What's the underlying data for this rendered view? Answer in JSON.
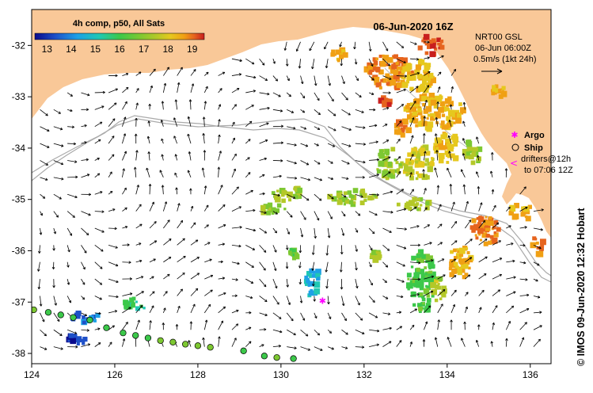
{
  "title": "06-Jun-2020 16Z",
  "colorbar": {
    "title": "4h comp, p50, All Sats",
    "ticks": [
      "13",
      "14",
      "15",
      "16",
      "17",
      "18",
      "19"
    ],
    "range": [
      12.5,
      19.5
    ]
  },
  "current_key": {
    "line1": "NRT00 GSL",
    "line2": "06-Jun 06:00Z",
    "line3": "0.5m/s (1kt 24h)"
  },
  "legend": {
    "argo_label": "Argo",
    "ship_label": "Ship",
    "drifters_line1": "drifters@12h",
    "drifters_line2": "to 07:06 12Z"
  },
  "credit": "© IMOS 09-Jun-2020 12:32 Hobart",
  "axes": {
    "x_ticks": [
      "124",
      "126",
      "128",
      "130",
      "132",
      "134",
      "136"
    ],
    "y_ticks": [
      "-32",
      "-33",
      "-34",
      "-35",
      "-36",
      "-37",
      "-38"
    ],
    "lon_range": [
      124,
      136.5
    ],
    "lat_range": [
      -38.2,
      -31.3
    ]
  },
  "colors": {
    "land": "#f9c898",
    "sea": "#ffffff",
    "bathymetry": "#aaaaaa",
    "argo": "#ff00ff",
    "arrow": "#000000",
    "sst_scale": [
      "#0a0a8c",
      "#1e50c8",
      "#1ea0e6",
      "#20c8b4",
      "#3cc84a",
      "#7dc832",
      "#b4c828",
      "#e6c81e",
      "#f0a014",
      "#e6641e",
      "#c81e1e"
    ]
  },
  "drifters": [
    {
      "lon": 124.05,
      "lat": -37.15,
      "sst": 16.2
    },
    {
      "lon": 124.4,
      "lat": -37.2,
      "sst": 15.3
    },
    {
      "lon": 124.7,
      "lat": -37.25,
      "sst": 15.2
    },
    {
      "lon": 125.0,
      "lat": -37.3,
      "sst": 15.1
    },
    {
      "lon": 125.4,
      "lat": -37.35,
      "sst": 15.2
    },
    {
      "lon": 125.8,
      "lat": -37.5,
      "sst": 15.2
    },
    {
      "lon": 126.2,
      "lat": -37.6,
      "sst": 15.3
    },
    {
      "lon": 126.5,
      "lat": -37.65,
      "sst": 15.4
    },
    {
      "lon": 126.8,
      "lat": -37.7,
      "sst": 15.6
    },
    {
      "lon": 127.1,
      "lat": -37.75,
      "sst": 16.0
    },
    {
      "lon": 127.4,
      "lat": -37.78,
      "sst": 16.1
    },
    {
      "lon": 127.7,
      "lat": -37.82,
      "sst": 16.0
    },
    {
      "lon": 128.0,
      "lat": -37.85,
      "sst": 15.9
    },
    {
      "lon": 128.3,
      "lat": -37.88,
      "sst": 15.7
    },
    {
      "lon": 129.1,
      "lat": -37.95,
      "sst": 15.3
    },
    {
      "lon": 129.6,
      "lat": -38.05,
      "sst": 15.6
    },
    {
      "lon": 129.9,
      "lat": -38.08,
      "sst": 15.7
    },
    {
      "lon": 130.3,
      "lat": -38.1,
      "sst": 15.6
    }
  ],
  "argo_floats": [
    {
      "lon": 131.0,
      "lat": -36.97
    }
  ],
  "sst_patches": [
    {
      "lon": 125.1,
      "lat": -37.7,
      "rx": 0.3,
      "ry": 0.12,
      "sst": 13.0
    },
    {
      "lon": 125.3,
      "lat": -37.3,
      "rx": 0.35,
      "ry": 0.1,
      "sst": 13.4
    },
    {
      "lon": 126.5,
      "lat": -37.05,
      "rx": 0.25,
      "ry": 0.15,
      "sst": 15.2
    },
    {
      "lon": 130.75,
      "lat": -36.6,
      "rx": 0.2,
      "ry": 0.3,
      "sst": 14.3
    },
    {
      "lon": 130.2,
      "lat": -34.9,
      "rx": 0.4,
      "ry": 0.15,
      "sst": 16.4
    },
    {
      "lon": 131.7,
      "lat": -34.95,
      "rx": 0.6,
      "ry": 0.15,
      "sst": 16.3
    },
    {
      "lon": 129.8,
      "lat": -35.2,
      "rx": 0.3,
      "ry": 0.1,
      "sst": 16.3
    },
    {
      "lon": 130.3,
      "lat": -36.05,
      "rx": 0.12,
      "ry": 0.1,
      "sst": 15.9
    },
    {
      "lon": 132.3,
      "lat": -36.1,
      "rx": 0.15,
      "ry": 0.08,
      "sst": 16.5
    },
    {
      "lon": 133.4,
      "lat": -36.6,
      "rx": 0.35,
      "ry": 0.6,
      "sst": 15.4
    },
    {
      "lon": 133.8,
      "lat": -36.75,
      "rx": 0.15,
      "ry": 0.25,
      "sst": 16.7
    },
    {
      "lon": 134.3,
      "lat": -36.2,
      "rx": 0.3,
      "ry": 0.35,
      "sst": 17.9
    },
    {
      "lon": 134.9,
      "lat": -35.6,
      "rx": 0.35,
      "ry": 0.3,
      "sst": 18.5
    },
    {
      "lon": 135.8,
      "lat": -35.25,
      "rx": 0.3,
      "ry": 0.15,
      "sst": 18.0
    },
    {
      "lon": 136.2,
      "lat": -35.9,
      "rx": 0.15,
      "ry": 0.2,
      "sst": 18.3
    },
    {
      "lon": 133.2,
      "lat": -35.1,
      "rx": 0.4,
      "ry": 0.12,
      "sst": 16.6
    },
    {
      "lon": 133.3,
      "lat": -34.3,
      "rx": 0.4,
      "ry": 0.35,
      "sst": 17.0
    },
    {
      "lon": 132.6,
      "lat": -34.3,
      "rx": 0.3,
      "ry": 0.3,
      "sst": 16.2
    },
    {
      "lon": 134.0,
      "lat": -34.0,
      "rx": 0.3,
      "ry": 0.3,
      "sst": 17.5
    },
    {
      "lon": 134.6,
      "lat": -34.1,
      "rx": 0.2,
      "ry": 0.25,
      "sst": 16.4
    },
    {
      "lon": 133.7,
      "lat": -33.3,
      "rx": 0.7,
      "ry": 0.35,
      "sst": 17.8
    },
    {
      "lon": 132.6,
      "lat": -32.5,
      "rx": 0.6,
      "ry": 0.35,
      "sst": 18.4
    },
    {
      "lon": 133.3,
      "lat": -32.6,
      "rx": 0.4,
      "ry": 0.3,
      "sst": 17.5
    },
    {
      "lon": 133.6,
      "lat": -32.0,
      "rx": 0.3,
      "ry": 0.2,
      "sst": 18.9
    },
    {
      "lon": 131.4,
      "lat": -32.2,
      "rx": 0.2,
      "ry": 0.12,
      "sst": 18.0
    },
    {
      "lon": 135.2,
      "lat": -32.9,
      "rx": 0.2,
      "ry": 0.15,
      "sst": 18.0
    },
    {
      "lon": 132.9,
      "lat": -33.6,
      "rx": 0.2,
      "ry": 0.15,
      "sst": 18.2
    },
    {
      "lon": 132.5,
      "lat": -33.1,
      "rx": 0.15,
      "ry": 0.1,
      "sst": 18.8
    }
  ]
}
